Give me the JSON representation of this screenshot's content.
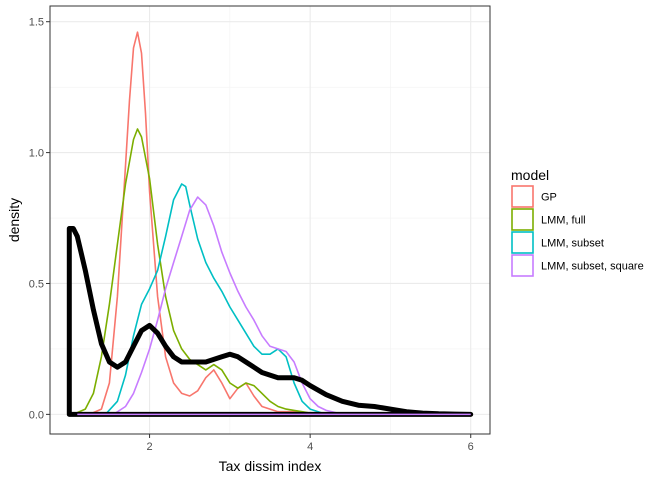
{
  "chart_data": {
    "type": "line",
    "xlabel": "Tax dissim index",
    "ylabel": "density",
    "xlim": [
      0.76,
      6.24
    ],
    "ylim": [
      -0.075,
      1.56
    ],
    "x_ticks": [
      2,
      4,
      6
    ],
    "y_ticks": [
      0.0,
      0.5,
      1.0,
      1.5
    ],
    "x_tick_labels": [
      "2",
      "4",
      "6"
    ],
    "y_tick_labels": [
      "0.0",
      "0.5",
      "1.0",
      "1.5"
    ],
    "grid": true,
    "legend_title": "model",
    "legend_position": "right",
    "series": [
      {
        "name": "GP",
        "color": "#F8766D",
        "x": [
          1.25,
          1.4,
          1.5,
          1.6,
          1.7,
          1.75,
          1.8,
          1.85,
          1.9,
          1.95,
          2.0,
          2.1,
          2.2,
          2.3,
          2.4,
          2.5,
          2.6,
          2.7,
          2.8,
          2.9,
          3.0,
          3.1,
          3.2,
          3.3,
          3.4,
          3.5,
          3.6,
          3.7,
          3.8,
          3.9,
          4.0,
          4.1
        ],
        "y": [
          0.0,
          0.02,
          0.12,
          0.45,
          0.95,
          1.2,
          1.4,
          1.46,
          1.38,
          1.15,
          0.85,
          0.45,
          0.22,
          0.12,
          0.08,
          0.07,
          0.09,
          0.14,
          0.17,
          0.12,
          0.06,
          0.1,
          0.12,
          0.07,
          0.03,
          0.02,
          0.01,
          0.01,
          0.01,
          0.005,
          0.0,
          0.0
        ]
      },
      {
        "name": "LMM, full",
        "color": "#7CAE00",
        "x": [
          1.05,
          1.2,
          1.3,
          1.4,
          1.5,
          1.6,
          1.7,
          1.8,
          1.85,
          1.9,
          2.0,
          2.1,
          2.2,
          2.3,
          2.4,
          2.5,
          2.6,
          2.7,
          2.8,
          2.9,
          3.0,
          3.1,
          3.2,
          3.3,
          3.4,
          3.5,
          3.6,
          3.7,
          3.8,
          3.9,
          4.0,
          4.1,
          4.2
        ],
        "y": [
          0.0,
          0.02,
          0.08,
          0.22,
          0.42,
          0.65,
          0.88,
          1.05,
          1.09,
          1.06,
          0.9,
          0.65,
          0.45,
          0.32,
          0.25,
          0.21,
          0.19,
          0.17,
          0.19,
          0.17,
          0.12,
          0.1,
          0.12,
          0.11,
          0.08,
          0.05,
          0.03,
          0.02,
          0.015,
          0.01,
          0.005,
          0.002,
          0.0
        ]
      },
      {
        "name": "LMM, subset",
        "color": "#00BFC4",
        "x": [
          1.45,
          1.6,
          1.7,
          1.8,
          1.9,
          2.0,
          2.1,
          2.2,
          2.3,
          2.4,
          2.45,
          2.5,
          2.6,
          2.7,
          2.8,
          2.9,
          3.0,
          3.1,
          3.2,
          3.3,
          3.4,
          3.5,
          3.6,
          3.7,
          3.8,
          3.9,
          4.0,
          4.1,
          4.2
        ],
        "y": [
          0.0,
          0.05,
          0.15,
          0.3,
          0.42,
          0.48,
          0.55,
          0.68,
          0.82,
          0.88,
          0.87,
          0.8,
          0.67,
          0.58,
          0.52,
          0.47,
          0.41,
          0.36,
          0.31,
          0.26,
          0.23,
          0.23,
          0.25,
          0.22,
          0.12,
          0.05,
          0.02,
          0.01,
          0.0
        ]
      },
      {
        "name": "LMM, subset, square",
        "color": "#C77CFF",
        "x": [
          1.55,
          1.7,
          1.8,
          1.9,
          2.0,
          2.1,
          2.2,
          2.3,
          2.4,
          2.5,
          2.6,
          2.7,
          2.8,
          2.9,
          3.0,
          3.1,
          3.2,
          3.3,
          3.4,
          3.5,
          3.6,
          3.7,
          3.8,
          3.9,
          4.0,
          4.1,
          4.2,
          4.3,
          4.4
        ],
        "y": [
          0.0,
          0.03,
          0.08,
          0.16,
          0.25,
          0.36,
          0.48,
          0.58,
          0.68,
          0.78,
          0.83,
          0.8,
          0.72,
          0.62,
          0.54,
          0.47,
          0.41,
          0.36,
          0.3,
          0.26,
          0.25,
          0.24,
          0.2,
          0.12,
          0.06,
          0.03,
          0.015,
          0.008,
          0.0
        ]
      },
      {
        "name": "",
        "color": "#000000",
        "closed": true,
        "x": [
          1.0,
          1.0,
          1.05,
          1.1,
          1.2,
          1.3,
          1.4,
          1.5,
          1.6,
          1.7,
          1.8,
          1.9,
          2.0,
          2.1,
          2.2,
          2.3,
          2.4,
          2.5,
          2.6,
          2.7,
          2.8,
          2.9,
          3.0,
          3.1,
          3.2,
          3.3,
          3.4,
          3.5,
          3.6,
          3.7,
          3.8,
          3.9,
          4.0,
          4.2,
          4.4,
          4.6,
          4.8,
          5.0,
          5.2,
          5.4,
          5.6,
          5.8,
          6.0,
          6.0
        ],
        "y": [
          0.0,
          0.71,
          0.71,
          0.68,
          0.55,
          0.4,
          0.27,
          0.2,
          0.18,
          0.2,
          0.26,
          0.32,
          0.34,
          0.31,
          0.26,
          0.22,
          0.2,
          0.2,
          0.2,
          0.2,
          0.21,
          0.22,
          0.23,
          0.22,
          0.2,
          0.18,
          0.16,
          0.15,
          0.14,
          0.14,
          0.14,
          0.13,
          0.11,
          0.075,
          0.05,
          0.035,
          0.03,
          0.02,
          0.01,
          0.005,
          0.002,
          0.001,
          0.0,
          0.0
        ]
      }
    ]
  }
}
